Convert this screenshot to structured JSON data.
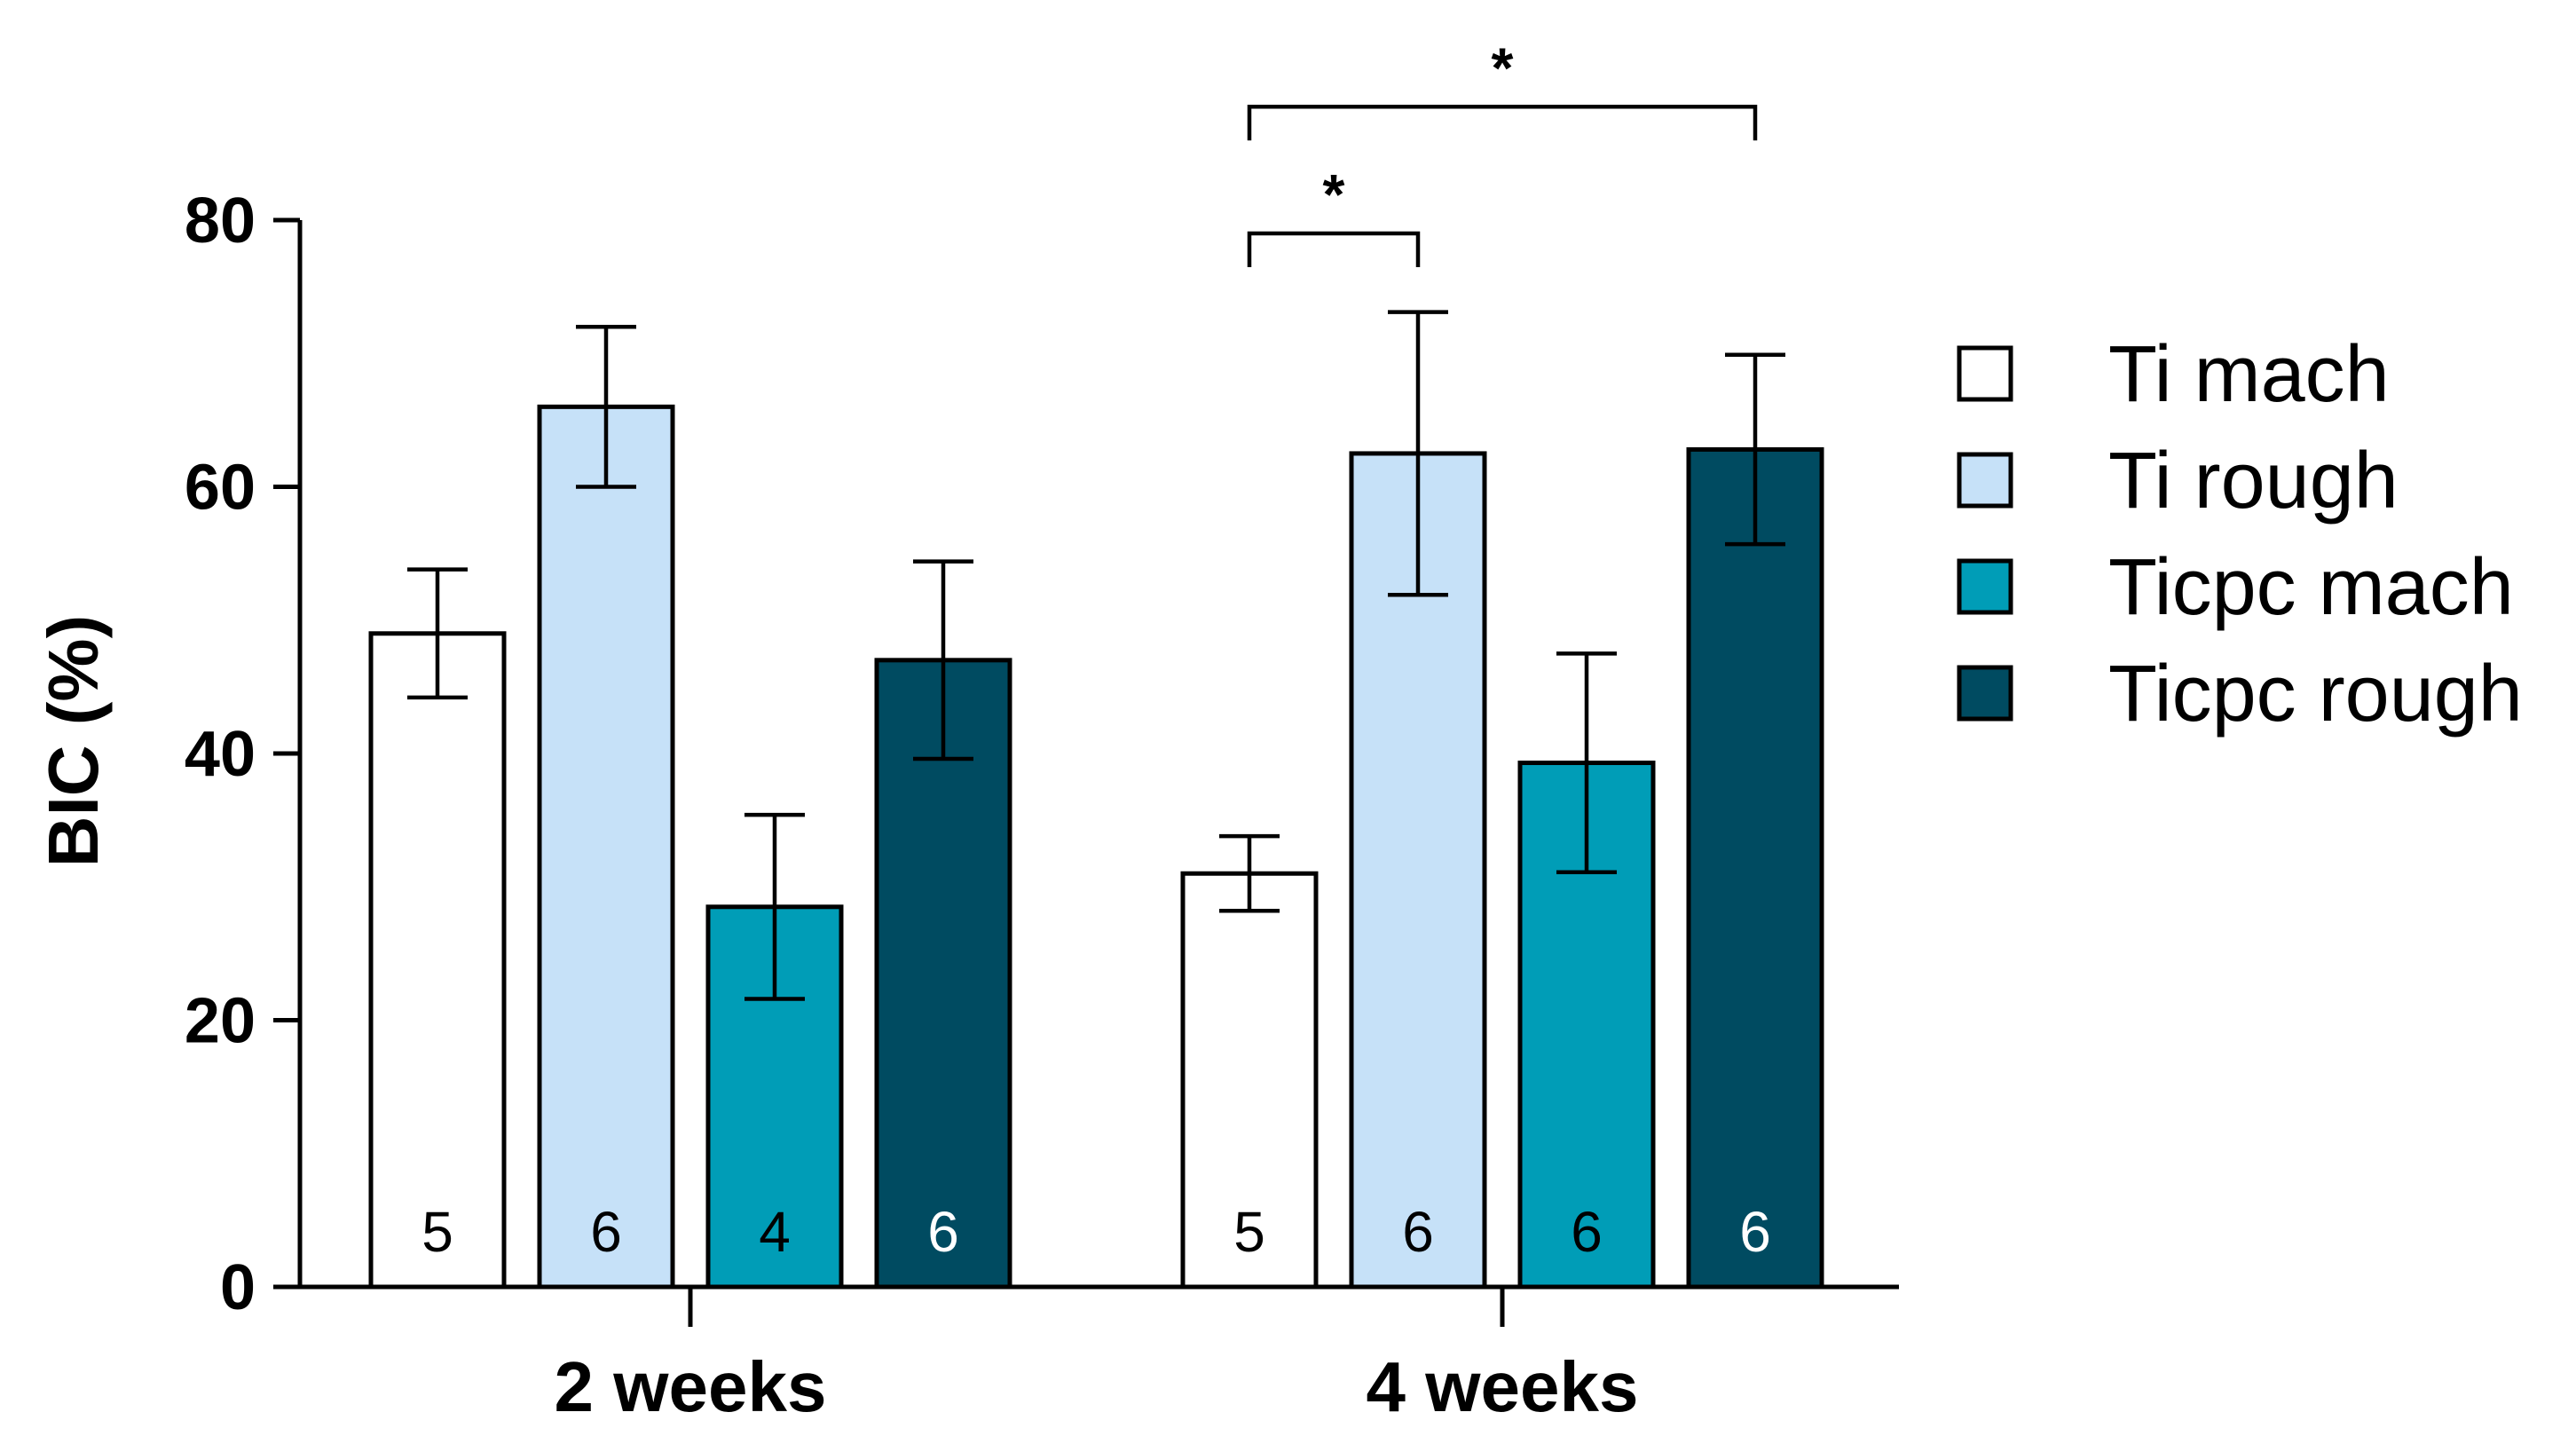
{
  "chart_data": {
    "type": "bar",
    "title": "",
    "xlabel": "",
    "ylabel": "BIC (%)",
    "ylim": [
      0,
      80
    ],
    "yticks": [
      0,
      20,
      40,
      60,
      80
    ],
    "grid": false,
    "legend_position": "right",
    "categories": [
      "2 weeks",
      "4 weeks"
    ],
    "series": [
      {
        "name": "Ti mach",
        "color": "#ffffff",
        "values": [
          49,
          31
        ],
        "error": [
          4.8,
          2.8
        ],
        "n": [
          "5",
          "5"
        ],
        "n_label_color": "#000000"
      },
      {
        "name": "Ti rough",
        "color": "#c6e1f8",
        "values": [
          66,
          62.5
        ],
        "error": [
          6,
          10.6
        ],
        "n": [
          "6",
          "6"
        ],
        "n_label_color": "#000000"
      },
      {
        "name": "Ticpc mach",
        "color": "#009db7",
        "values": [
          28.5,
          39.3
        ],
        "error": [
          6.9,
          8.2
        ],
        "n": [
          "4",
          "6"
        ],
        "n_label_color": "#000000"
      },
      {
        "name": "Ticpc rough",
        "color": "#004b61",
        "values": [
          47,
          62.8
        ],
        "error": [
          7.4,
          7.1
        ],
        "n": [
          "6",
          "6"
        ],
        "n_label_color": "#ffffff"
      }
    ],
    "significance": [
      {
        "category": 1,
        "from_series": 0,
        "to_series": 1,
        "label": "*",
        "y": 79
      },
      {
        "category": 1,
        "from_series": 0,
        "to_series": 3,
        "label": "*",
        "y": 88.5
      }
    ]
  }
}
